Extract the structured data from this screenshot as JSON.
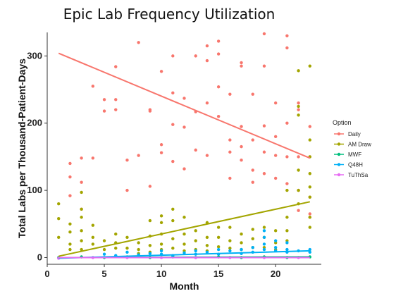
{
  "chart_data": {
    "type": "scatter",
    "title": "Epic Lab Frequency Utilization",
    "xlabel": "Month",
    "ylabel": "Total Labs per Thousand-Patient-Days",
    "xlim": [
      0,
      24
    ],
    "ylim": [
      -10,
      335
    ],
    "x_ticks": [
      0,
      5,
      10,
      15,
      20
    ],
    "y_ticks": [
      0,
      100,
      200,
      300
    ],
    "grid": false,
    "legend": {
      "title": "Option",
      "position": "right"
    },
    "series": [
      {
        "name": "Daily",
        "color": "#f8766d",
        "trend": [
          [
            1,
            304
          ],
          [
            23,
            148
          ]
        ],
        "points": [
          [
            2,
            120
          ],
          [
            2,
            92
          ],
          [
            2,
            140
          ],
          [
            3,
            148
          ],
          [
            3,
            112
          ],
          [
            3,
            72
          ],
          [
            4,
            255
          ],
          [
            4,
            148
          ],
          [
            5,
            218
          ],
          [
            5,
            235
          ],
          [
            6,
            284
          ],
          [
            6,
            220
          ],
          [
            6,
            235
          ],
          [
            7,
            145
          ],
          [
            7,
            100
          ],
          [
            8,
            320
          ],
          [
            8,
            152
          ],
          [
            9,
            220
          ],
          [
            9,
            218
          ],
          [
            9,
            106
          ],
          [
            10,
            277
          ],
          [
            10,
            168
          ],
          [
            10,
            156
          ],
          [
            11,
            245
          ],
          [
            11,
            300
          ],
          [
            11,
            143
          ],
          [
            11,
            198
          ],
          [
            12,
            237
          ],
          [
            12,
            132
          ],
          [
            12,
            194
          ],
          [
            13,
            300
          ],
          [
            13,
            217
          ],
          [
            13,
            160
          ],
          [
            14,
            315
          ],
          [
            14,
            230
          ],
          [
            14,
            152
          ],
          [
            14,
            293
          ],
          [
            15,
            322
          ],
          [
            15,
            303
          ],
          [
            15,
            254
          ],
          [
            15,
            210
          ],
          [
            16,
            243
          ],
          [
            16,
            175
          ],
          [
            16,
            157
          ],
          [
            16,
            118
          ],
          [
            17,
            285
          ],
          [
            17,
            290
          ],
          [
            17,
            195
          ],
          [
            17,
            165
          ],
          [
            17,
            145
          ],
          [
            18,
            243
          ],
          [
            18,
            175
          ],
          [
            18,
            112
          ],
          [
            18,
            130
          ],
          [
            19,
            333
          ],
          [
            19,
            285
          ],
          [
            19,
            196
          ],
          [
            19,
            157
          ],
          [
            19,
            125
          ],
          [
            20,
            230
          ],
          [
            20,
            180
          ],
          [
            20,
            152
          ],
          [
            20,
            118
          ],
          [
            21,
            330
          ],
          [
            21,
            312
          ],
          [
            21,
            200
          ],
          [
            21,
            150
          ],
          [
            21,
            110
          ],
          [
            22,
            230
          ],
          [
            22,
            220
          ],
          [
            22,
            150
          ],
          [
            22,
            100
          ],
          [
            22,
            70
          ],
          [
            23,
            195
          ],
          [
            23,
            150
          ],
          [
            23,
            90
          ],
          [
            23,
            65
          ],
          [
            23,
            60
          ]
        ]
      },
      {
        "name": "AM Draw",
        "color": "#a3a500",
        "trend": [
          [
            1,
            2
          ],
          [
            23,
            83
          ]
        ],
        "points": [
          [
            1,
            80
          ],
          [
            1,
            58
          ],
          [
            1,
            30
          ],
          [
            2,
            50
          ],
          [
            2,
            38
          ],
          [
            2,
            20
          ],
          [
            2,
            12
          ],
          [
            3,
            97
          ],
          [
            3,
            72
          ],
          [
            3,
            60
          ],
          [
            3,
            40
          ],
          [
            3,
            25
          ],
          [
            3,
            12
          ],
          [
            4,
            48
          ],
          [
            4,
            30
          ],
          [
            4,
            20
          ],
          [
            5,
            25
          ],
          [
            5,
            12
          ],
          [
            6,
            35
          ],
          [
            6,
            22
          ],
          [
            6,
            14
          ],
          [
            7,
            30
          ],
          [
            7,
            14
          ],
          [
            8,
            22
          ],
          [
            8,
            12
          ],
          [
            8,
            6
          ],
          [
            9,
            55
          ],
          [
            9,
            32
          ],
          [
            9,
            18
          ],
          [
            9,
            8
          ],
          [
            10,
            62
          ],
          [
            10,
            52
          ],
          [
            10,
            35
          ],
          [
            10,
            20
          ],
          [
            10,
            12
          ],
          [
            11,
            72
          ],
          [
            11,
            55
          ],
          [
            11,
            28
          ],
          [
            11,
            14
          ],
          [
            12,
            60
          ],
          [
            12,
            35
          ],
          [
            12,
            20
          ],
          [
            12,
            10
          ],
          [
            13,
            40
          ],
          [
            13,
            25
          ],
          [
            13,
            12
          ],
          [
            14,
            52
          ],
          [
            14,
            30
          ],
          [
            14,
            18
          ],
          [
            14,
            10
          ],
          [
            15,
            45
          ],
          [
            15,
            30
          ],
          [
            15,
            16
          ],
          [
            16,
            45
          ],
          [
            16,
            25
          ],
          [
            16,
            14
          ],
          [
            17,
            35
          ],
          [
            17,
            22
          ],
          [
            17,
            12
          ],
          [
            18,
            42
          ],
          [
            18,
            28
          ],
          [
            18,
            15
          ],
          [
            19,
            45
          ],
          [
            19,
            30
          ],
          [
            19,
            15
          ],
          [
            20,
            40
          ],
          [
            20,
            22
          ],
          [
            20,
            12
          ],
          [
            21,
            100
          ],
          [
            21,
            60
          ],
          [
            21,
            40
          ],
          [
            21,
            25
          ],
          [
            22,
            225
          ],
          [
            22,
            278
          ],
          [
            22,
            212
          ],
          [
            22,
            130
          ],
          [
            22,
            100
          ],
          [
            22,
            80
          ],
          [
            23,
            285
          ],
          [
            23,
            175
          ],
          [
            23,
            150
          ],
          [
            23,
            125
          ],
          [
            23,
            105
          ],
          [
            23,
            90
          ],
          [
            23,
            60
          ],
          [
            23,
            45
          ]
        ]
      },
      {
        "name": "MWF",
        "color": "#00bf7d",
        "trend": [
          [
            1,
            0
          ],
          [
            23,
            1
          ]
        ],
        "points": [
          [
            1,
            0
          ],
          [
            3,
            1
          ],
          [
            5,
            0
          ],
          [
            7,
            1
          ],
          [
            9,
            0
          ],
          [
            11,
            1
          ],
          [
            13,
            0
          ],
          [
            15,
            1
          ],
          [
            17,
            0
          ],
          [
            19,
            1
          ],
          [
            21,
            0
          ],
          [
            23,
            1
          ]
        ]
      },
      {
        "name": "Q48H",
        "color": "#00b0f6",
        "trend": [
          [
            1,
            -1
          ],
          [
            23,
            10
          ]
        ],
        "points": [
          [
            5,
            5
          ],
          [
            6,
            3
          ],
          [
            7,
            8
          ],
          [
            8,
            4
          ],
          [
            9,
            6
          ],
          [
            10,
            5
          ],
          [
            10,
            10
          ],
          [
            11,
            3
          ],
          [
            12,
            7
          ],
          [
            13,
            5
          ],
          [
            13,
            10
          ],
          [
            14,
            8
          ],
          [
            15,
            12
          ],
          [
            15,
            5
          ],
          [
            16,
            10
          ],
          [
            17,
            6
          ],
          [
            17,
            12
          ],
          [
            18,
            15
          ],
          [
            18,
            8
          ],
          [
            19,
            40
          ],
          [
            19,
            30
          ],
          [
            19,
            20
          ],
          [
            19,
            12
          ],
          [
            20,
            25
          ],
          [
            20,
            15
          ],
          [
            20,
            10
          ],
          [
            21,
            22
          ],
          [
            21,
            12
          ],
          [
            21,
            8
          ],
          [
            22,
            10
          ],
          [
            23,
            12
          ],
          [
            23,
            8
          ]
        ]
      },
      {
        "name": "TuThSa",
        "color": "#e76bf3",
        "trend": [
          [
            1,
            0
          ],
          [
            23,
            0
          ]
        ],
        "points": [
          [
            1,
            -1
          ],
          [
            4,
            0
          ],
          [
            7,
            0
          ],
          [
            10,
            0
          ],
          [
            13,
            0
          ],
          [
            16,
            0
          ],
          [
            19,
            0
          ],
          [
            22,
            0
          ]
        ]
      }
    ]
  }
}
